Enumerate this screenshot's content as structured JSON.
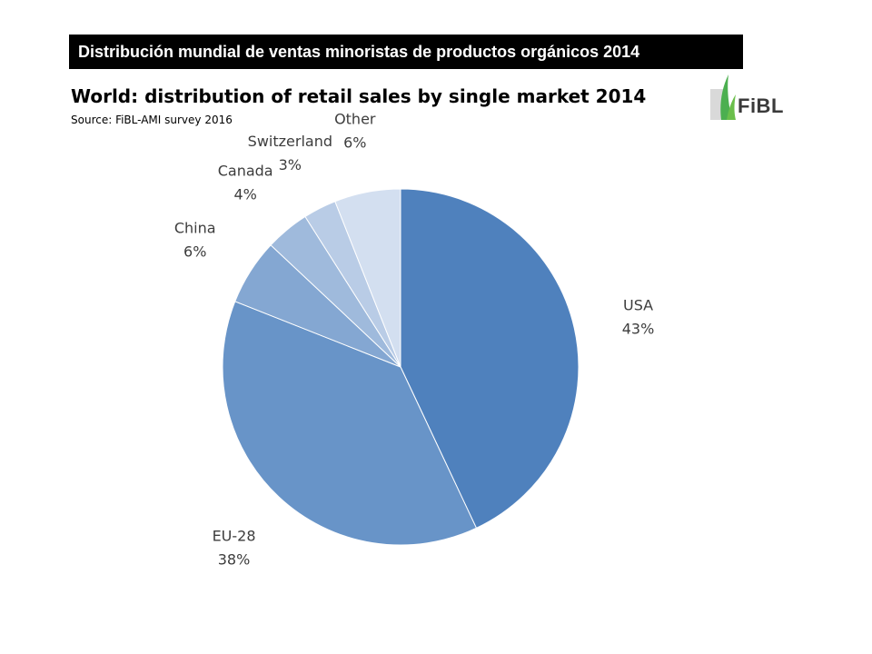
{
  "banner": {
    "text": "Distribución mundial de ventas minoristas de productos orgánicos 2014"
  },
  "logo": {
    "text": "FiBL",
    "icon": "fibl-leaf-icon",
    "color": "#4caf50"
  },
  "chart_data": {
    "type": "pie",
    "title": "World: distribution of retail sales by single market 2014",
    "subtitle": "Source: FiBL-AMI survey 2016",
    "start_angle_deg": 0,
    "direction": "clockwise",
    "slices": [
      {
        "label": "USA",
        "value": 43,
        "display": "43%",
        "color": "#4f81bd"
      },
      {
        "label": "EU-28",
        "value": 38,
        "display": "38%",
        "color": "#6894c8"
      },
      {
        "label": "China",
        "value": 6,
        "display": "6%",
        "color": "#84a7d2"
      },
      {
        "label": "Canada",
        "value": 4,
        "display": "4%",
        "color": "#9fbadc"
      },
      {
        "label": "Switzerland",
        "value": 3,
        "display": "3%",
        "color": "#b9cce6"
      },
      {
        "label": "Other",
        "value": 6,
        "display": "6%",
        "color": "#d3dff0"
      }
    ]
  }
}
